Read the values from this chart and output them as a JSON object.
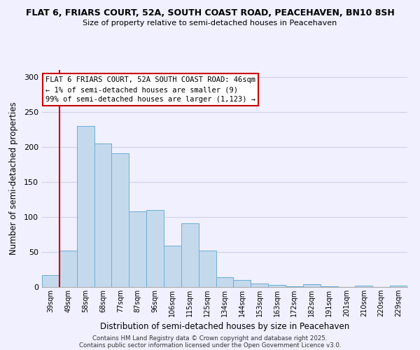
{
  "title_line1": "FLAT 6, FRIARS COURT, 52A, SOUTH COAST ROAD, PEACEHAVEN, BN10 8SH",
  "title_line2": "Size of property relative to semi-detached houses in Peacehaven",
  "xlabel": "Distribution of semi-detached houses by size in Peacehaven",
  "ylabel": "Number of semi-detached properties",
  "categories": [
    "39sqm",
    "49sqm",
    "58sqm",
    "68sqm",
    "77sqm",
    "87sqm",
    "96sqm",
    "106sqm",
    "115sqm",
    "125sqm",
    "134sqm",
    "144sqm",
    "153sqm",
    "163sqm",
    "172sqm",
    "182sqm",
    "191sqm",
    "201sqm",
    "210sqm",
    "220sqm",
    "229sqm"
  ],
  "values": [
    17,
    52,
    230,
    205,
    191,
    108,
    110,
    59,
    91,
    52,
    14,
    10,
    5,
    3,
    1,
    4,
    1,
    0,
    2,
    0,
    2
  ],
  "bar_color": "#c5d9ed",
  "bar_edge_color": "#6aaed6",
  "vline_color": "#cc0000",
  "vline_x": 0.5,
  "annotation_text": "FLAT 6 FRIARS COURT, 52A SOUTH COAST ROAD: 46sqm\n← 1% of semi-detached houses are smaller (9)\n99% of semi-detached houses are larger (1,123) →",
  "annotation_box_color": "#ffffff",
  "annotation_box_edge": "#cc0000",
  "ylim": [
    0,
    310
  ],
  "yticks": [
    0,
    50,
    100,
    150,
    200,
    250,
    300
  ],
  "background_color": "#f0f0ff",
  "grid_color": "#d0d0e8",
  "footer_line1": "Contains HM Land Registry data © Crown copyright and database right 2025.",
  "footer_line2": "Contains public sector information licensed under the Open Government Licence v3.0."
}
